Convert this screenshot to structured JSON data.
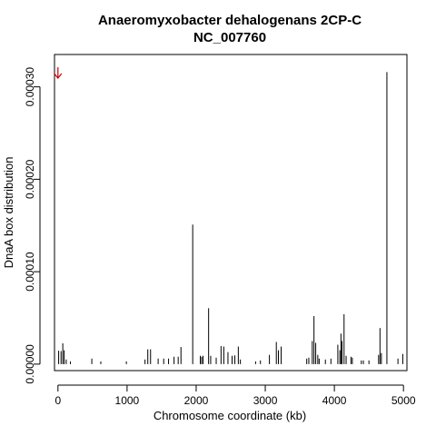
{
  "chart_data": {
    "type": "bar",
    "title": "Anaeromyxobacter dehalogenans 2CP-C",
    "subtitle": "NC_007760",
    "xlabel": "Chromosome coordinate (kb)",
    "ylabel": "DnaA box distribution",
    "xlim": [
      -50,
      5050
    ],
    "ylim": [
      -7e-06,
      0.000335
    ],
    "x_ticks": [
      0,
      1000,
      2000,
      3000,
      4000,
      5000
    ],
    "x_tick_labels": [
      "0",
      "1000",
      "2000",
      "3000",
      "4000",
      "5000"
    ],
    "y_ticks": [
      0.0,
      0.0001,
      0.0002,
      0.0003
    ],
    "y_tick_labels": [
      "0.00000",
      "0.00010",
      "0.00020",
      "0.00030"
    ],
    "grid": false,
    "marker": {
      "x": 0,
      "symbol": "down-arrow",
      "color": "#cc0000"
    },
    "series": [
      {
        "x": [
          10,
          45,
          70,
          90,
          120,
          180,
          490,
          620,
          990,
          1260,
          1300,
          1340,
          1450,
          1530,
          1600,
          1680,
          1740,
          1780,
          1950,
          2060,
          2080,
          2100,
          2180,
          2210,
          2290,
          2360,
          2400,
          2460,
          2520,
          2560,
          2610,
          2640,
          2860,
          2930,
          3060,
          3160,
          3190,
          3230,
          3600,
          3630,
          3680,
          3705,
          3730,
          3760,
          3780,
          3870,
          3950,
          4050,
          4080,
          4095,
          4110,
          4140,
          4170,
          4240,
          4260,
          4390,
          4420,
          4500,
          4640,
          4660,
          4680,
          4760,
          4920,
          4990
        ],
        "values": [
          1.45e-05,
          1.4e-05,
          2.25e-05,
          1.5e-05,
          5e-06,
          3e-06,
          6e-06,
          3e-06,
          3e-06,
          5e-06,
          1.6e-05,
          1.6e-05,
          6e-06,
          6e-06,
          6e-06,
          8e-06,
          8e-06,
          1.85e-05,
          0.000151,
          9e-06,
          8e-06,
          9e-06,
          6.05e-05,
          9e-06,
          7e-06,
          1.95e-05,
          1.9e-05,
          1.3e-05,
          9e-06,
          9.5e-06,
          1.9e-05,
          5e-06,
          3e-06,
          4e-06,
          1e-05,
          2.4e-05,
          1.5e-05,
          1.9e-05,
          6e-06,
          7e-06,
          2.5e-05,
          5.2e-05,
          2.3e-05,
          1e-05,
          6e-06,
          5e-06,
          6e-06,
          2.1e-05,
          1.5e-05,
          3.3e-05,
          2.5e-05,
          5.4e-05,
          9e-06,
          8e-06,
          7e-06,
          4e-06,
          4e-06,
          4e-06,
          1e-05,
          3.9e-05,
          1.2e-05,
          0.000316,
          6e-06,
          1.1e-05
        ]
      }
    ]
  }
}
